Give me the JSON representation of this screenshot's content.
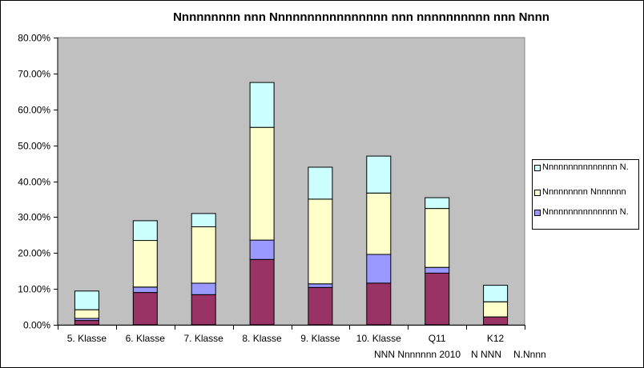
{
  "chart_data": {
    "type": "bar",
    "stacked": true,
    "title": "Nnnnnnnnn nnn Nnnnnnnnnnnnnnnn nnn nnnnnnnnnn nnn Nnnn",
    "categories": [
      "5. Klasse",
      "6. Klasse",
      "7. Klasse",
      "8. Klasse",
      "9. Klasse",
      "10. Klasse",
      "Q11",
      "K12"
    ],
    "series": [
      {
        "values": [
          1.2,
          9.0,
          8.4,
          18.2,
          10.4,
          11.6,
          14.4,
          2.2
        ],
        "color": "#993366"
      },
      {
        "values": [
          0.6,
          1.5,
          3.2,
          5.4,
          1.0,
          8.0,
          1.6,
          0.0
        ],
        "color": "#9999ff"
      },
      {
        "name": "Nnnnnnnnn Nnnnnnn",
        "values": [
          2.4,
          13.0,
          15.7,
          31.4,
          23.6,
          17.1,
          16.4,
          4.2
        ],
        "color": "#ffffcc"
      },
      {
        "name": "Nnnnnnnnnnnnnnn N.",
        "values": [
          5.2,
          5.5,
          3.7,
          12.5,
          8.9,
          10.3,
          3.0,
          4.6
        ],
        "color": "#ccffff"
      }
    ],
    "legend": {
      "position": "right",
      "entries": [
        {
          "label": "Nnnnnnnnnnnnnnn N.",
          "color": "#ccffff"
        },
        {
          "label": "Nnnnnnnnn Nnnnnnn",
          "color": "#ffffcc"
        },
        {
          "label": "Nnnnnnnnnnnnnnn N.",
          "color": "#9999ff"
        }
      ]
    },
    "yticks": [
      "0.00%",
      "10.00%",
      "20.00%",
      "30.00%",
      "40.00%",
      "50.00%",
      "60.00%",
      "70.00%",
      "80.00%"
    ],
    "ylim": [
      0,
      80
    ],
    "grid": false,
    "plot_background": "#c0c0c0",
    "footnote": [
      "NNN Nnnnnnn 2010",
      "N NNN",
      "N.Nnnn"
    ]
  }
}
